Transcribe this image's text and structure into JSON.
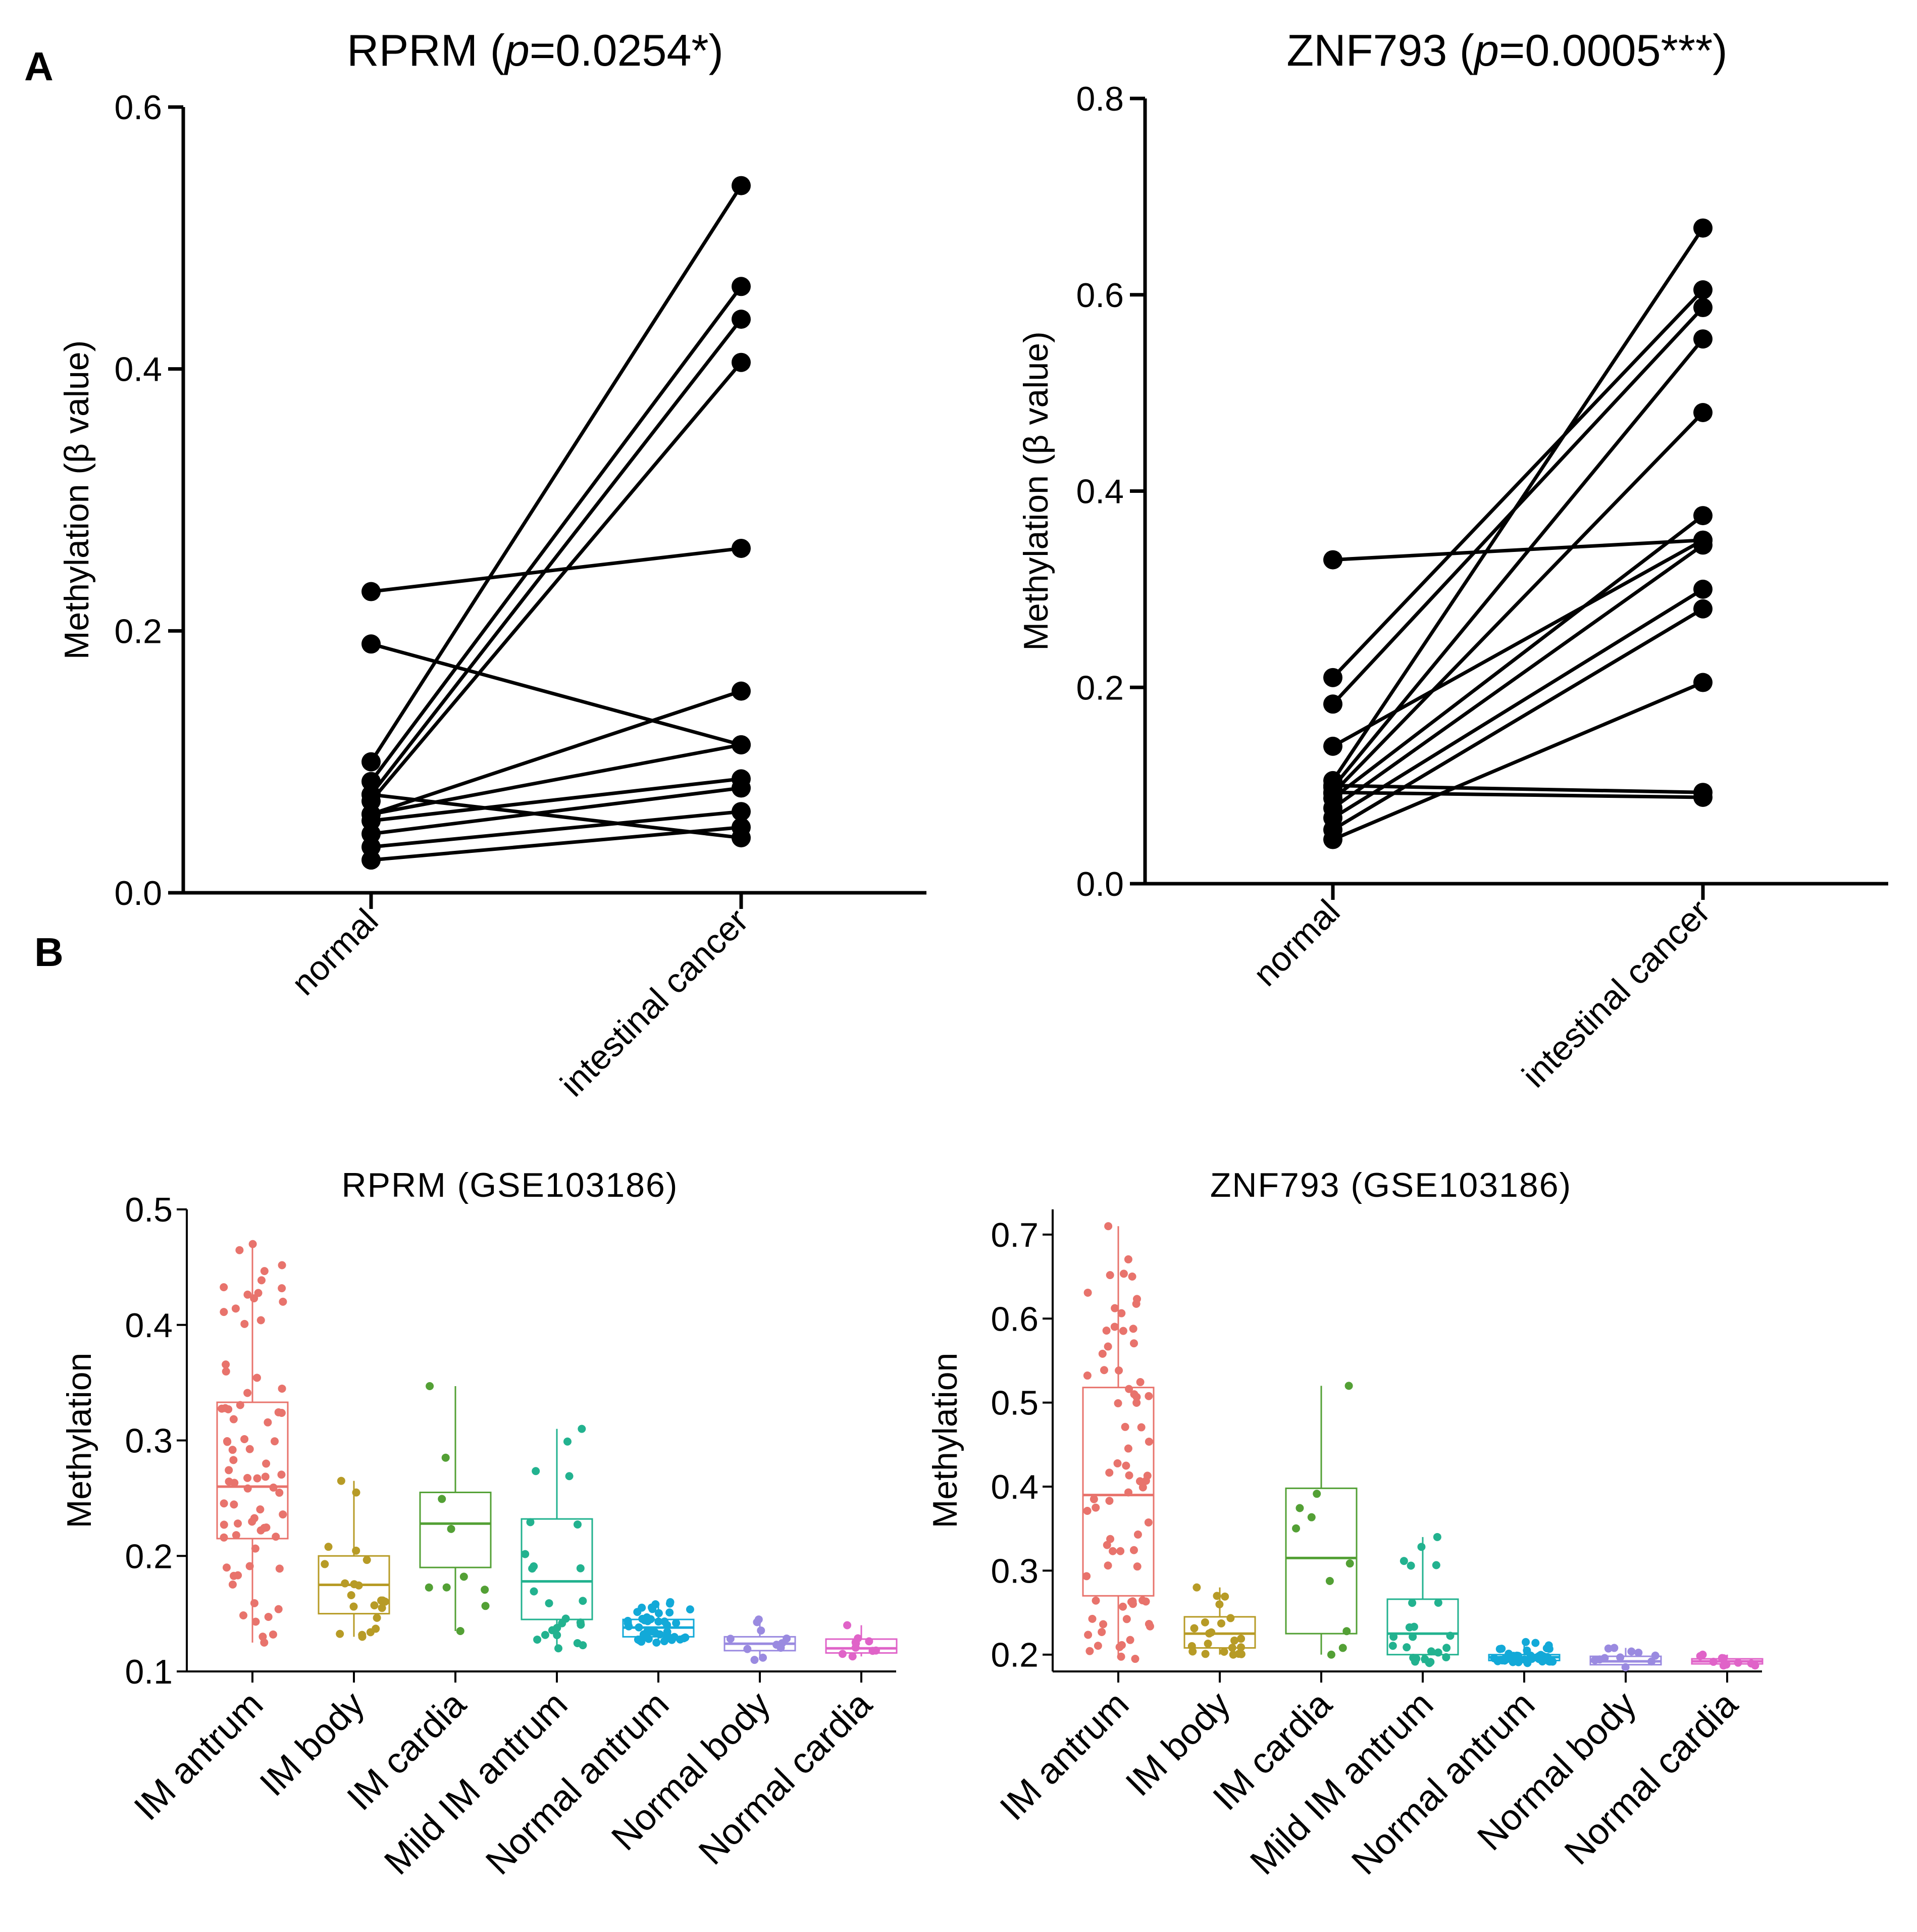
{
  "panels": {
    "a": "A",
    "b": "B"
  },
  "chart_data": [
    {
      "id": "rprm_paired",
      "type": "line",
      "title_gene": "RPRM",
      "title_p": "p",
      "title_rest": "=0.0254*)",
      "title": "RPRM (p=0.0254*)",
      "xlabel": "",
      "ylabel": "Methylation (β value)",
      "categories": [
        "normal",
        "intestinal cancer"
      ],
      "ylim": [
        0,
        0.6
      ],
      "yticks": [
        "0.0",
        "0.2",
        "0.4",
        "0.6"
      ],
      "ytick_values": [
        0,
        0.2,
        0.4,
        0.6
      ],
      "pairs": [
        [
          0.23,
          0.263
        ],
        [
          0.19,
          0.113
        ],
        [
          0.1,
          0.54
        ],
        [
          0.085,
          0.463
        ],
        [
          0.075,
          0.438
        ],
        [
          0.07,
          0.405
        ],
        [
          0.06,
          0.154
        ],
        [
          0.055,
          0.087
        ],
        [
          0.075,
          0.042
        ],
        [
          0.045,
          0.08
        ],
        [
          0.035,
          0.062
        ],
        [
          0.025,
          0.05
        ],
        [
          0.06,
          0.113
        ]
      ]
    },
    {
      "id": "znf793_paired",
      "type": "line",
      "title_gene": "ZNF793",
      "title_p": "p",
      "title_rest": "=0.0005***)",
      "title": "ZNF793 (p=0.0005***)",
      "xlabel": "",
      "ylabel": "Methylation (β value)",
      "categories": [
        "normal",
        "intestinal cancer"
      ],
      "ylim": [
        0,
        0.8
      ],
      "yticks": [
        "0.0",
        "0.2",
        "0.4",
        "0.6",
        "0.8"
      ],
      "ytick_values": [
        0,
        0.2,
        0.4,
        0.6,
        0.8
      ],
      "pairs": [
        [
          0.33,
          0.35
        ],
        [
          0.21,
          0.605
        ],
        [
          0.183,
          0.587
        ],
        [
          0.14,
          0.35
        ],
        [
          0.105,
          0.668
        ],
        [
          0.098,
          0.555
        ],
        [
          0.092,
          0.48
        ],
        [
          0.087,
          0.375
        ],
        [
          0.077,
          0.345
        ],
        [
          0.067,
          0.3
        ],
        [
          0.055,
          0.28
        ],
        [
          0.045,
          0.205
        ],
        [
          0.1,
          0.093
        ],
        [
          0.093,
          0.088
        ]
      ]
    },
    {
      "id": "rprm_gse",
      "type": "box",
      "title": "RPRM (GSE103186)",
      "xlabel": "",
      "ylabel": "Methylation",
      "ylim": [
        0.1,
        0.5
      ],
      "yticks": [
        "0.1",
        "0.2",
        "0.3",
        "0.4",
        "0.5"
      ],
      "ytick_values": [
        0.1,
        0.2,
        0.3,
        0.4,
        0.5
      ],
      "categories": [
        "IM antrum",
        "IM body",
        "IM cardia",
        "Mild IM antrum",
        "Normal antrum",
        "Normal body",
        "Normal cardia"
      ],
      "colors": [
        "#E8736C",
        "#B79B26",
        "#53A035",
        "#22B28F",
        "#12A9D8",
        "#9A8AE0",
        "#E063C8"
      ],
      "boxes": [
        {
          "min": 0.125,
          "q1": 0.215,
          "median": 0.26,
          "q3": 0.333,
          "max": 0.47,
          "n": 75
        },
        {
          "min": 0.13,
          "q1": 0.15,
          "median": 0.175,
          "q3": 0.2,
          "max": 0.265,
          "n": 22
        },
        {
          "min": 0.135,
          "q1": 0.19,
          "median": 0.228,
          "q3": 0.255,
          "max": 0.347,
          "n": 10
        },
        {
          "min": 0.12,
          "q1": 0.145,
          "median": 0.178,
          "q3": 0.232,
          "max": 0.31,
          "n": 25
        },
        {
          "min": 0.125,
          "q1": 0.13,
          "median": 0.138,
          "q3": 0.145,
          "max": 0.16,
          "n": 45
        },
        {
          "min": 0.11,
          "q1": 0.118,
          "median": 0.124,
          "q3": 0.13,
          "max": 0.145,
          "n": 11
        },
        {
          "min": 0.113,
          "q1": 0.116,
          "median": 0.12,
          "q3": 0.128,
          "max": 0.14,
          "n": 10
        }
      ]
    },
    {
      "id": "znf793_gse",
      "type": "box",
      "title": "ZNF793 (GSE103186)",
      "xlabel": "",
      "ylabel": "Methylation",
      "ylim": [
        0.18,
        0.73
      ],
      "yticks": [
        "0.2",
        "0.3",
        "0.4",
        "0.5",
        "0.6",
        "0.7"
      ],
      "ytick_values": [
        0.2,
        0.3,
        0.4,
        0.5,
        0.6,
        0.7
      ],
      "categories": [
        "IM antrum",
        "IM body",
        "IM cardia",
        "Mild IM antrum",
        "Normal antrum",
        "Normal body",
        "Normal cardia"
      ],
      "colors": [
        "#E8736C",
        "#B79B26",
        "#53A035",
        "#22B28F",
        "#12A9D8",
        "#9A8AE0",
        "#E063C8"
      ],
      "boxes": [
        {
          "min": 0.195,
          "q1": 0.27,
          "median": 0.39,
          "q3": 0.518,
          "max": 0.71,
          "n": 75
        },
        {
          "min": 0.2,
          "q1": 0.208,
          "median": 0.225,
          "q3": 0.245,
          "max": 0.28,
          "n": 22
        },
        {
          "min": 0.2,
          "q1": 0.225,
          "median": 0.315,
          "q3": 0.398,
          "max": 0.52,
          "n": 10
        },
        {
          "min": 0.19,
          "q1": 0.2,
          "median": 0.225,
          "q3": 0.266,
          "max": 0.34,
          "n": 25
        },
        {
          "min": 0.19,
          "q1": 0.193,
          "median": 0.197,
          "q3": 0.2,
          "max": 0.215,
          "n": 45
        },
        {
          "min": 0.185,
          "q1": 0.188,
          "median": 0.192,
          "q3": 0.198,
          "max": 0.208,
          "n": 11
        },
        {
          "min": 0.187,
          "q1": 0.189,
          "median": 0.192,
          "q3": 0.195,
          "max": 0.2,
          "n": 10
        }
      ]
    }
  ]
}
